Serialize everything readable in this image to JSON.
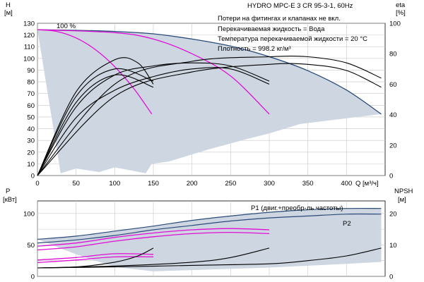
{
  "title": "HYDRO MPC-E 3 CR 95-3-1, 60Hz",
  "notes": [
    "Потери на фитингах и клапанах не вкл.",
    "Перекачиваемая жидкость = Вода",
    "Температура перекачиваемой жидкости = 20 °C",
    "Плотность = 998.2 кг/м³"
  ],
  "chart_data": [
    {
      "type": "line",
      "name": "head-efficiency",
      "xlabel": "Q [м³/ч]",
      "ylabel": "H\n[м]",
      "y2label": "eta\n[%]",
      "xlim": [
        0,
        450
      ],
      "xticks": [
        0,
        50,
        100,
        150,
        200,
        250,
        300,
        350,
        400
      ],
      "ylim": [
        0,
        130
      ],
      "yticks": [
        0,
        10,
        20,
        30,
        40,
        50,
        60,
        70,
        80,
        90,
        100,
        110,
        120,
        130
      ],
      "y2lim": [
        0,
        100
      ],
      "y2ticks": [
        0,
        20,
        40,
        60,
        80,
        100
      ],
      "annotation": "100 %",
      "colors": {
        "max_curve": "#2a4a7a",
        "speed_curves": "#e10fd6",
        "efficiency": "#000000",
        "area": "#cdd6e1"
      },
      "series": [
        {
          "role": "max_curve",
          "x": [
            0,
            50,
            100,
            150,
            200,
            250,
            300,
            350,
            400,
            445
          ],
          "y": [
            124.5,
            124,
            123,
            121,
            116.5,
            110.5,
            101.5,
            89.5,
            73,
            52.5
          ]
        },
        {
          "role": "speed_curve",
          "x": [
            0,
            25,
            50,
            75,
            100,
            125,
            148
          ],
          "y": [
            124.5,
            123,
            117.5,
            107.5,
            93,
            74,
            52.5
          ]
        },
        {
          "role": "speed_curve",
          "x": [
            0,
            100,
            150,
            200,
            250,
            300
          ],
          "y": [
            124.5,
            122,
            116.5,
            104,
            85,
            52.5
          ]
        },
        {
          "role": "area_upper",
          "x": [
            0,
            50,
            100,
            150,
            200,
            250,
            300,
            350,
            400,
            445
          ],
          "y": [
            124.5,
            124,
            123,
            121,
            116.5,
            110.5,
            101.5,
            89.5,
            73,
            52.5
          ]
        },
        {
          "role": "area_lower",
          "x": [
            0,
            30,
            50,
            80,
            100,
            140,
            148,
            170,
            220,
            270,
            300,
            340,
            445
          ],
          "y": [
            124.5,
            2,
            6,
            3,
            7,
            2,
            10,
            12,
            22,
            31,
            36,
            44,
            52.5
          ]
        },
        {
          "role": "efficiency",
          "axis": "y2",
          "x": [
            0,
            50,
            100,
            130,
            150
          ],
          "y": [
            0,
            55,
            76,
            74,
            60
          ]
        },
        {
          "role": "efficiency",
          "axis": "y2",
          "x": [
            0,
            50,
            100,
            150
          ],
          "y": [
            0,
            52,
            70,
            62
          ]
        },
        {
          "role": "efficiency",
          "axis": "y2",
          "x": [
            0,
            50,
            100,
            150
          ],
          "y": [
            0,
            48,
            66,
            58
          ]
        },
        {
          "role": "efficiency",
          "axis": "y2",
          "x": [
            0,
            50,
            100,
            150,
            200,
            250,
            300
          ],
          "y": [
            0,
            45,
            66,
            72,
            74,
            72,
            62
          ]
        },
        {
          "role": "efficiency",
          "axis": "y2",
          "x": [
            0,
            50,
            100,
            150,
            200,
            250,
            300
          ],
          "y": [
            0,
            38,
            56,
            65,
            70,
            70,
            60
          ]
        },
        {
          "role": "efficiency",
          "axis": "y2",
          "x": [
            0,
            100,
            200,
            300,
            350,
            400,
            445
          ],
          "y": [
            0,
            60,
            75,
            78,
            78,
            74,
            64
          ]
        },
        {
          "role": "efficiency",
          "axis": "y2",
          "x": [
            0,
            100,
            200,
            300,
            350,
            400,
            445
          ],
          "y": [
            0,
            52,
            68,
            73,
            73,
            69,
            58
          ]
        }
      ]
    },
    {
      "type": "line",
      "name": "power-npsh",
      "ylabel": "P\n[кВт]",
      "y2label": "NPSH\n[м]",
      "xlim": [
        0,
        450
      ],
      "ylim": [
        0,
        120
      ],
      "yticks": [
        0,
        50,
        100
      ],
      "y2lim": [
        0,
        24
      ],
      "y2ticks": [
        0,
        10,
        20
      ],
      "legend": [
        "P1 (двиг.+преобр-ль частоты)",
        "P2"
      ],
      "colors": {
        "p1": "#2a4a7a",
        "p2": "#2a4a7a",
        "speed": "#e10fd6",
        "npsh": "#000000",
        "area": "#cdd6e1"
      },
      "series": [
        {
          "role": "p1",
          "x": [
            0,
            50,
            100,
            150,
            200,
            250,
            300,
            350,
            400,
            445
          ],
          "y": [
            59,
            64,
            72,
            80,
            89,
            96,
            102,
            106,
            108,
            108
          ]
        },
        {
          "role": "p2",
          "x": [
            0,
            50,
            100,
            150,
            200,
            250,
            300,
            350,
            400,
            445
          ],
          "y": [
            53,
            58,
            65,
            74,
            81,
            88,
            93,
            96,
            99,
            99
          ]
        },
        {
          "role": "speed",
          "x": [
            0,
            50,
            100,
            150,
            200,
            250,
            300
          ],
          "y": [
            48,
            53,
            62,
            69,
            74,
            76,
            74
          ]
        },
        {
          "role": "speed",
          "x": [
            0,
            50,
            100,
            150,
            200,
            250,
            300
          ],
          "y": [
            42,
            47,
            56,
            63,
            68,
            70,
            68
          ]
        },
        {
          "role": "speed",
          "x": [
            0,
            50,
            100,
            150
          ],
          "y": [
            26,
            30,
            36,
            35
          ]
        },
        {
          "role": "speed",
          "x": [
            0,
            50,
            100,
            150
          ],
          "y": [
            22,
            26,
            31,
            31
          ]
        },
        {
          "role": "npsh",
          "axis": "y2",
          "x": [
            0,
            50,
            100,
            130,
            150
          ],
          "y": [
            2.7,
            3,
            4.5,
            6.5,
            9
          ]
        },
        {
          "role": "npsh",
          "axis": "y2",
          "x": [
            0,
            100,
            200,
            250,
            300
          ],
          "y": [
            2.7,
            3.3,
            4.5,
            6,
            9
          ]
        },
        {
          "role": "npsh",
          "axis": "y2",
          "x": [
            0,
            100,
            200,
            300,
            350,
            400,
            445
          ],
          "y": [
            2.7,
            3,
            3.5,
            4,
            5,
            6.5,
            9
          ]
        },
        {
          "role": "area_upper",
          "x": [
            0,
            50,
            100,
            150,
            200,
            250,
            300,
            350,
            400,
            445
          ],
          "y": [
            59,
            64,
            72,
            80,
            89,
            96,
            102,
            106,
            108,
            108
          ]
        },
        {
          "role": "area_lower",
          "x": [
            0,
            50,
            100,
            150,
            200,
            300,
            400,
            445
          ],
          "y": [
            59,
            35,
            15,
            8,
            10,
            14,
            20,
            23
          ]
        }
      ]
    }
  ]
}
